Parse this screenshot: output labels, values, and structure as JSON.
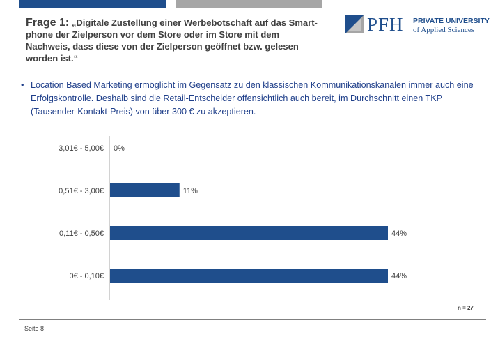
{
  "slide": {
    "question_label": "Frage 1:",
    "question_text": "„Digitale Zustellung einer Werbebotschaft auf das Smart-phone der Zielperson vor dem Store oder im Store mit dem Nachweis, dass diese von der Zielperson geöffnet bzw. gelesen worden ist.“",
    "bullet_symbol": "•",
    "bullet_text": "Location Based Marketing ermöglicht im Gegensatz zu den klassischen Kommunikationskanälen immer auch eine Erfolgskontrolle. Deshalb sind die Retail-Entscheider offensichtlich auch bereit, im Durchschnitt einen TKP (Tausender-Kontakt-Preis)  von über 300 € zu akzeptieren.",
    "sample_size": "n = 27",
    "footer": "Seite 8"
  },
  "logo": {
    "mark_icon": "pfh-logo-mark-icon",
    "name": "PFH",
    "line1": "PRIVATE UNIVERSITY",
    "line2": "of Applied Sciences"
  },
  "colors": {
    "brand_blue": "#1f4e8c",
    "bar": "#1f4e8c",
    "text_dark": "#404040",
    "bullet_text": "#1f3f8a",
    "gray_bar": "#a6a6a6"
  },
  "chart_data": {
    "type": "bar",
    "orientation": "horizontal",
    "categories": [
      "3,01€ - 5,00€",
      "0,51€ - 3,00€",
      "0,11€ - 0,50€",
      "0€ - 0,10€"
    ],
    "values": [
      0,
      11,
      44,
      44
    ],
    "value_labels": [
      "0%",
      "11%",
      "44%",
      "44%"
    ],
    "xlim": [
      0,
      50
    ],
    "grid": false,
    "legend": false
  }
}
